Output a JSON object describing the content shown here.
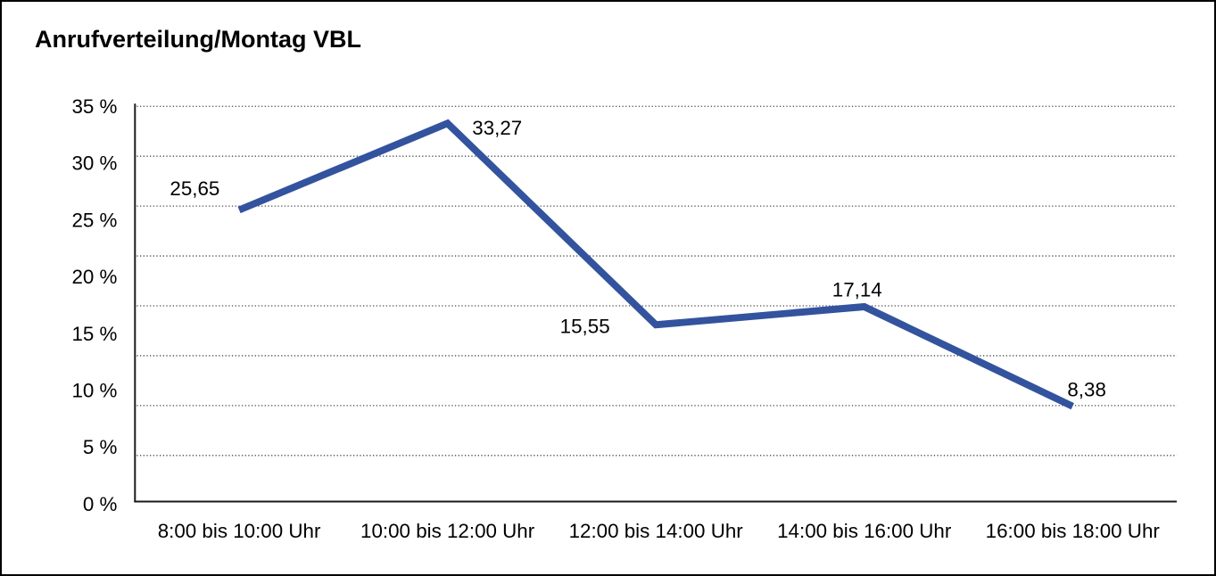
{
  "chart_data": {
    "type": "line",
    "title": "Anrufverteilung/Montag VBL",
    "categories": [
      "8:00 bis 10:00 Uhr",
      "10:00 bis 12:00 Uhr",
      "12:00 bis 14:00 Uhr",
      "14:00 bis 16:00 Uhr",
      "16:00 bis 18:00 Uhr"
    ],
    "values": [
      25.65,
      33.27,
      15.55,
      17.14,
      8.38
    ],
    "value_labels": [
      "25,65",
      "33,27",
      "15,55",
      "17,14",
      "8,38"
    ],
    "y_tick_labels": [
      "35 %",
      "30 %",
      "25 %",
      "20 %",
      "15 %",
      "10 %",
      "5 %",
      "0 %"
    ],
    "ylim": [
      0,
      35
    ],
    "y_tick_step": 5,
    "xlabel": "",
    "ylabel": "",
    "legend": "none",
    "grid": "horizontal-dotted",
    "gridline_count": 8,
    "line_color": "#33539E",
    "grid_color": "#4A4A4A",
    "axis_color": "#1A1A1A",
    "text_color": "#000000",
    "background_color": "#FFFFFF",
    "border_color": "#000000"
  }
}
